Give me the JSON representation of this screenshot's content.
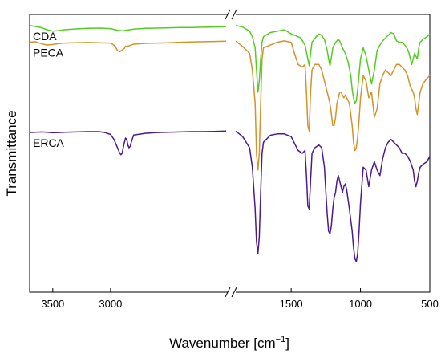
{
  "chart_data": {
    "type": "line",
    "xlabel": "Wavenumber [cm",
    "xlabel_superscript": "−1",
    "xlabel_suffix": "]",
    "ylabel": "Transmittance",
    "x_axis": "broken",
    "x_reversed": true,
    "x_segments": [
      [
        3700,
        2000
      ],
      [
        1900,
        500
      ]
    ],
    "xticks": [
      3500,
      3000,
      1500,
      1000,
      500
    ],
    "xtick_labels": [
      "3500",
      "3000",
      "1500",
      "1000",
      "500"
    ],
    "ylim": [
      0,
      1
    ],
    "y_tick_labels": false,
    "grid": false,
    "colors": {
      "CDA": "#55cc22",
      "PECA": "#d4922a",
      "ERCA": "#4b1a8c"
    },
    "series": [
      {
        "name": "CDA",
        "x": [
          3700,
          3600,
          3550,
          3500,
          3450,
          3400,
          3300,
          3200,
          3100,
          3000,
          2950,
          2900,
          2850,
          2800,
          2700,
          2600,
          2500,
          2400,
          2300,
          2200,
          2100,
          2000,
          1900,
          1850,
          1800,
          1780,
          1760,
          1750,
          1740,
          1730,
          1720,
          1710,
          1700,
          1650,
          1600,
          1550,
          1500,
          1450,
          1430,
          1400,
          1380,
          1370,
          1360,
          1350,
          1320,
          1300,
          1280,
          1260,
          1240,
          1230,
          1220,
          1210,
          1200,
          1180,
          1170,
          1160,
          1150,
          1130,
          1110,
          1090,
          1070,
          1060,
          1050,
          1040,
          1030,
          1020,
          1000,
          980,
          960,
          940,
          920,
          900,
          880,
          860,
          840,
          820,
          800,
          780,
          760,
          740,
          720,
          700,
          680,
          660,
          650,
          640,
          630,
          620,
          610,
          600,
          590,
          580,
          570,
          550,
          520,
          500
        ],
        "y": [
          0.96,
          0.953,
          0.945,
          0.94,
          0.942,
          0.945,
          0.948,
          0.95,
          0.951,
          0.949,
          0.944,
          0.941,
          0.944,
          0.947,
          0.95,
          0.951,
          0.952,
          0.953,
          0.953,
          0.954,
          0.955,
          0.956,
          0.96,
          0.955,
          0.94,
          0.92,
          0.88,
          0.8,
          0.72,
          0.76,
          0.84,
          0.9,
          0.92,
          0.935,
          0.94,
          0.945,
          0.93,
          0.92,
          0.915,
          0.89,
          0.84,
          0.815,
          0.86,
          0.9,
          0.92,
          0.93,
          0.925,
          0.91,
          0.87,
          0.84,
          0.815,
          0.845,
          0.88,
          0.9,
          0.905,
          0.91,
          0.905,
          0.88,
          0.86,
          0.83,
          0.78,
          0.73,
          0.7,
          0.68,
          0.69,
          0.73,
          0.84,
          0.88,
          0.85,
          0.8,
          0.75,
          0.8,
          0.87,
          0.89,
          0.905,
          0.915,
          0.925,
          0.935,
          0.93,
          0.905,
          0.9,
          0.9,
          0.89,
          0.875,
          0.86,
          0.84,
          0.82,
          0.84,
          0.86,
          0.85,
          0.84,
          0.88,
          0.9,
          0.91,
          0.92,
          0.93
        ]
      },
      {
        "name": "PECA",
        "x": [
          3700,
          3650,
          3600,
          3550,
          3500,
          3450,
          3400,
          3300,
          3200,
          3100,
          3000,
          2980,
          2960,
          2940,
          2920,
          2900,
          2880,
          2870,
          2860,
          2850,
          2800,
          2700,
          2600,
          2500,
          2400,
          2300,
          2200,
          2100,
          2000,
          1900,
          1850,
          1800,
          1780,
          1760,
          1750,
          1740,
          1730,
          1720,
          1710,
          1700,
          1650,
          1600,
          1550,
          1500,
          1470,
          1450,
          1420,
          1400,
          1390,
          1380,
          1370,
          1360,
          1350,
          1330,
          1300,
          1280,
          1260,
          1250,
          1240,
          1230,
          1220,
          1210,
          1200,
          1190,
          1180,
          1170,
          1160,
          1150,
          1140,
          1130,
          1120,
          1110,
          1100,
          1080,
          1060,
          1050,
          1040,
          1030,
          1020,
          1010,
          1000,
          980,
          960,
          940,
          920,
          900,
          880,
          860,
          840,
          820,
          800,
          780,
          760,
          740,
          720,
          700,
          680,
          660,
          640,
          620,
          610,
          600,
          590,
          580,
          570,
          550,
          520,
          500
        ],
        "y": [
          0.9,
          0.902,
          0.895,
          0.89,
          0.892,
          0.895,
          0.897,
          0.898,
          0.899,
          0.898,
          0.897,
          0.892,
          0.886,
          0.87,
          0.866,
          0.872,
          0.878,
          0.886,
          0.884,
          0.886,
          0.893,
          0.896,
          0.897,
          0.898,
          0.9,
          0.901,
          0.902,
          0.903,
          0.904,
          0.904,
          0.885,
          0.86,
          0.8,
          0.68,
          0.5,
          0.44,
          0.5,
          0.68,
          0.84,
          0.88,
          0.89,
          0.9,
          0.905,
          0.9,
          0.85,
          0.82,
          0.81,
          0.82,
          0.72,
          0.6,
          0.58,
          0.72,
          0.8,
          0.82,
          0.82,
          0.8,
          0.76,
          0.74,
          0.72,
          0.7,
          0.68,
          0.64,
          0.6,
          0.6,
          0.63,
          0.68,
          0.7,
          0.72,
          0.72,
          0.71,
          0.7,
          0.71,
          0.7,
          0.68,
          0.6,
          0.54,
          0.51,
          0.52,
          0.56,
          0.62,
          0.7,
          0.78,
          0.76,
          0.7,
          0.72,
          0.63,
          0.66,
          0.75,
          0.78,
          0.8,
          0.79,
          0.78,
          0.8,
          0.82,
          0.82,
          0.81,
          0.8,
          0.78,
          0.74,
          0.72,
          0.7,
          0.66,
          0.64,
          0.68,
          0.72,
          0.75,
          0.77,
          0.78
        ]
      },
      {
        "name": "ERCA",
        "x": [
          3700,
          3650,
          3600,
          3550,
          3500,
          3450,
          3400,
          3300,
          3200,
          3100,
          3050,
          3000,
          2970,
          2950,
          2930,
          2920,
          2910,
          2900,
          2890,
          2880,
          2870,
          2860,
          2850,
          2840,
          2830,
          2820,
          2800,
          2700,
          2600,
          2500,
          2400,
          2300,
          2200,
          2100,
          2000,
          1900,
          1850,
          1800,
          1780,
          1760,
          1750,
          1740,
          1730,
          1720,
          1710,
          1700,
          1650,
          1600,
          1550,
          1500,
          1470,
          1450,
          1420,
          1400,
          1390,
          1380,
          1370,
          1360,
          1350,
          1330,
          1300,
          1280,
          1260,
          1250,
          1240,
          1230,
          1220,
          1210,
          1200,
          1190,
          1180,
          1170,
          1160,
          1150,
          1140,
          1130,
          1120,
          1110,
          1100,
          1080,
          1060,
          1050,
          1040,
          1030,
          1020,
          1010,
          1000,
          980,
          960,
          940,
          920,
          900,
          880,
          860,
          840,
          820,
          800,
          780,
          760,
          740,
          720,
          700,
          680,
          660,
          640,
          620,
          610,
          600,
          590,
          580,
          570,
          550,
          520,
          500
        ],
        "y": [
          0.575,
          0.576,
          0.577,
          0.576,
          0.574,
          0.575,
          0.576,
          0.577,
          0.578,
          0.578,
          0.575,
          0.568,
          0.55,
          0.53,
          0.51,
          0.5,
          0.495,
          0.5,
          0.52,
          0.54,
          0.555,
          0.55,
          0.53,
          0.52,
          0.525,
          0.54,
          0.566,
          0.572,
          0.575,
          0.576,
          0.577,
          0.578,
          0.578,
          0.579,
          0.58,
          0.58,
          0.56,
          0.52,
          0.45,
          0.3,
          0.18,
          0.14,
          0.2,
          0.36,
          0.5,
          0.54,
          0.565,
          0.57,
          0.57,
          0.56,
          0.53,
          0.51,
          0.5,
          0.51,
          0.42,
          0.31,
          0.3,
          0.4,
          0.5,
          0.52,
          0.53,
          0.52,
          0.45,
          0.36,
          0.28,
          0.22,
          0.21,
          0.24,
          0.3,
          0.34,
          0.36,
          0.4,
          0.42,
          0.4,
          0.38,
          0.36,
          0.38,
          0.39,
          0.37,
          0.3,
          0.22,
          0.16,
          0.12,
          0.11,
          0.14,
          0.22,
          0.32,
          0.45,
          0.44,
          0.38,
          0.44,
          0.47,
          0.44,
          0.42,
          0.48,
          0.52,
          0.54,
          0.55,
          0.54,
          0.53,
          0.52,
          0.5,
          0.5,
          0.49,
          0.47,
          0.44,
          0.4,
          0.38,
          0.4,
          0.43,
          0.45,
          0.46,
          0.47,
          0.49
        ]
      }
    ]
  }
}
